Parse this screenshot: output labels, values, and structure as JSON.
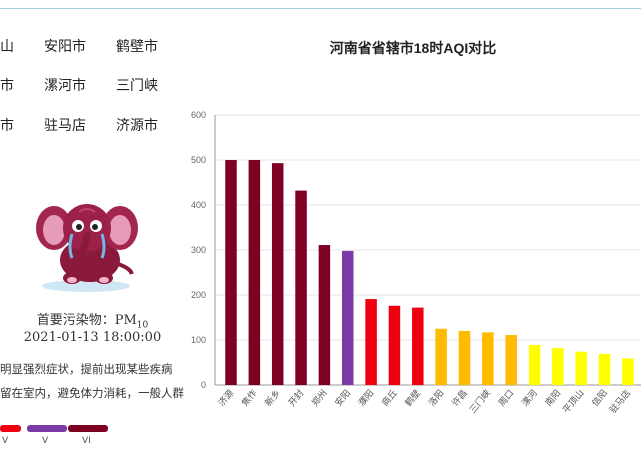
{
  "cities": [
    "山",
    "安阳市",
    "鹤壁市",
    "市",
    "漯河市",
    "三门峡",
    "市",
    "驻马店",
    "济源市"
  ],
  "pollutant": {
    "label": "首要污染物：PM",
    "sub": "10"
  },
  "timestamp": "2021-01-13 18:00:00",
  "advice": [
    "明显强烈症状，提前出现某些疾病",
    "留在室内，避免体力消耗，一般人群"
  ],
  "legend": [
    {
      "label": "V",
      "color": "#f0000f"
    },
    {
      "label": "V",
      "color": "#7b3aa5"
    },
    {
      "label": "VI",
      "color": "#7e0023"
    }
  ],
  "chart_data": {
    "type": "bar",
    "title": "河南省省辖市18时AQI对比",
    "xlabel": "",
    "ylabel": "",
    "ylim": [
      0,
      600
    ],
    "yticks": [
      0,
      100,
      200,
      300,
      400,
      500,
      600
    ],
    "grid": true,
    "categories": [
      "济源",
      "焦作",
      "新乡",
      "开封",
      "郑州",
      "安阳",
      "濮阳",
      "商丘",
      "鹤壁",
      "洛阳",
      "许昌",
      "三门峡",
      "周口",
      "漯河",
      "南阳",
      "平顶山",
      "信阳",
      "驻马店"
    ],
    "values": [
      500,
      500,
      493,
      432,
      311,
      298,
      191,
      176,
      172,
      125,
      120,
      117,
      111,
      89,
      82,
      74,
      69,
      59
    ],
    "colors": [
      "#7e0023",
      "#7e0023",
      "#7e0023",
      "#7e0023",
      "#7e0023",
      "#7b3aa5",
      "#f0000f",
      "#f0000f",
      "#f0000f",
      "#ffbb00",
      "#ffbb00",
      "#ffbb00",
      "#ffbb00",
      "#ffff00",
      "#ffff00",
      "#ffff00",
      "#ffff00",
      "#ffff00"
    ]
  }
}
